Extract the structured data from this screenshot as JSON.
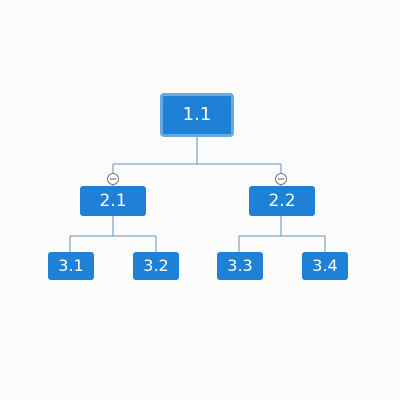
{
  "nodes": {
    "root": "1.1",
    "n21": "2.1",
    "n22": "2.2",
    "n31": "3.1",
    "n32": "3.2",
    "n33": "3.3",
    "n34": "3.4"
  },
  "colors": {
    "node_fill": "#1e80d6",
    "root_border": "#6da8db",
    "connector": "#6a8fb5",
    "toggle_stroke": "#777777"
  },
  "toggles": [
    "collapse-icon",
    "collapse-icon"
  ]
}
